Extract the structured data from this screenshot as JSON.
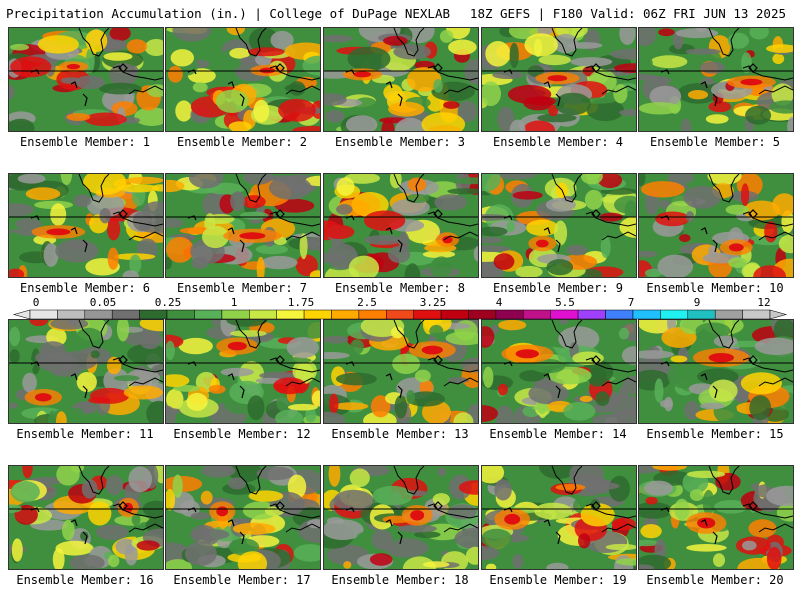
{
  "header": {
    "title": "Precipitation Accumulation (in.) | College of DuPage NEXLAB",
    "run_info": "18Z GEFS | F180 Valid: 06Z FRI JUN 13 2025"
  },
  "panels": [
    {
      "label": "Ensemble Member: 1"
    },
    {
      "label": "Ensemble Member: 2"
    },
    {
      "label": "Ensemble Member: 3"
    },
    {
      "label": "Ensemble Member: 4"
    },
    {
      "label": "Ensemble Member: 5"
    },
    {
      "label": "Ensemble Member: 6"
    },
    {
      "label": "Ensemble Member: 7"
    },
    {
      "label": "Ensemble Member: 8"
    },
    {
      "label": "Ensemble Member: 9"
    },
    {
      "label": "Ensemble Member: 10"
    },
    {
      "label": "Ensemble Member: 11"
    },
    {
      "label": "Ensemble Member: 12"
    },
    {
      "label": "Ensemble Member: 13"
    },
    {
      "label": "Ensemble Member: 14"
    },
    {
      "label": "Ensemble Member: 15"
    },
    {
      "label": "Ensemble Member: 16"
    },
    {
      "label": "Ensemble Member: 17"
    },
    {
      "label": "Ensemble Member: 18"
    },
    {
      "label": "Ensemble Member: 19"
    },
    {
      "label": "Ensemble Member: 20"
    }
  ],
  "colorbar": {
    "labels": [
      "0",
      "0.05",
      "0.25",
      "1",
      "1.75",
      "2.5",
      "3.25",
      "4",
      "5.5",
      "7",
      "9",
      "12"
    ],
    "colors": [
      "#e6e6e6",
      "#bdbdbd",
      "#969696",
      "#707070",
      "#2e6b2e",
      "#3f8f3f",
      "#58b058",
      "#8fd24a",
      "#c8e845",
      "#f5f53c",
      "#ffd400",
      "#ffaa00",
      "#ff7f00",
      "#f04a1a",
      "#e01010",
      "#c00010",
      "#a00020",
      "#900050",
      "#c0108a",
      "#e010d0",
      "#a040ff",
      "#4080ff",
      "#20c0ff",
      "#20f0f0",
      "#20c0c0",
      "#a0a0a0",
      "#c8c8c8"
    ]
  }
}
